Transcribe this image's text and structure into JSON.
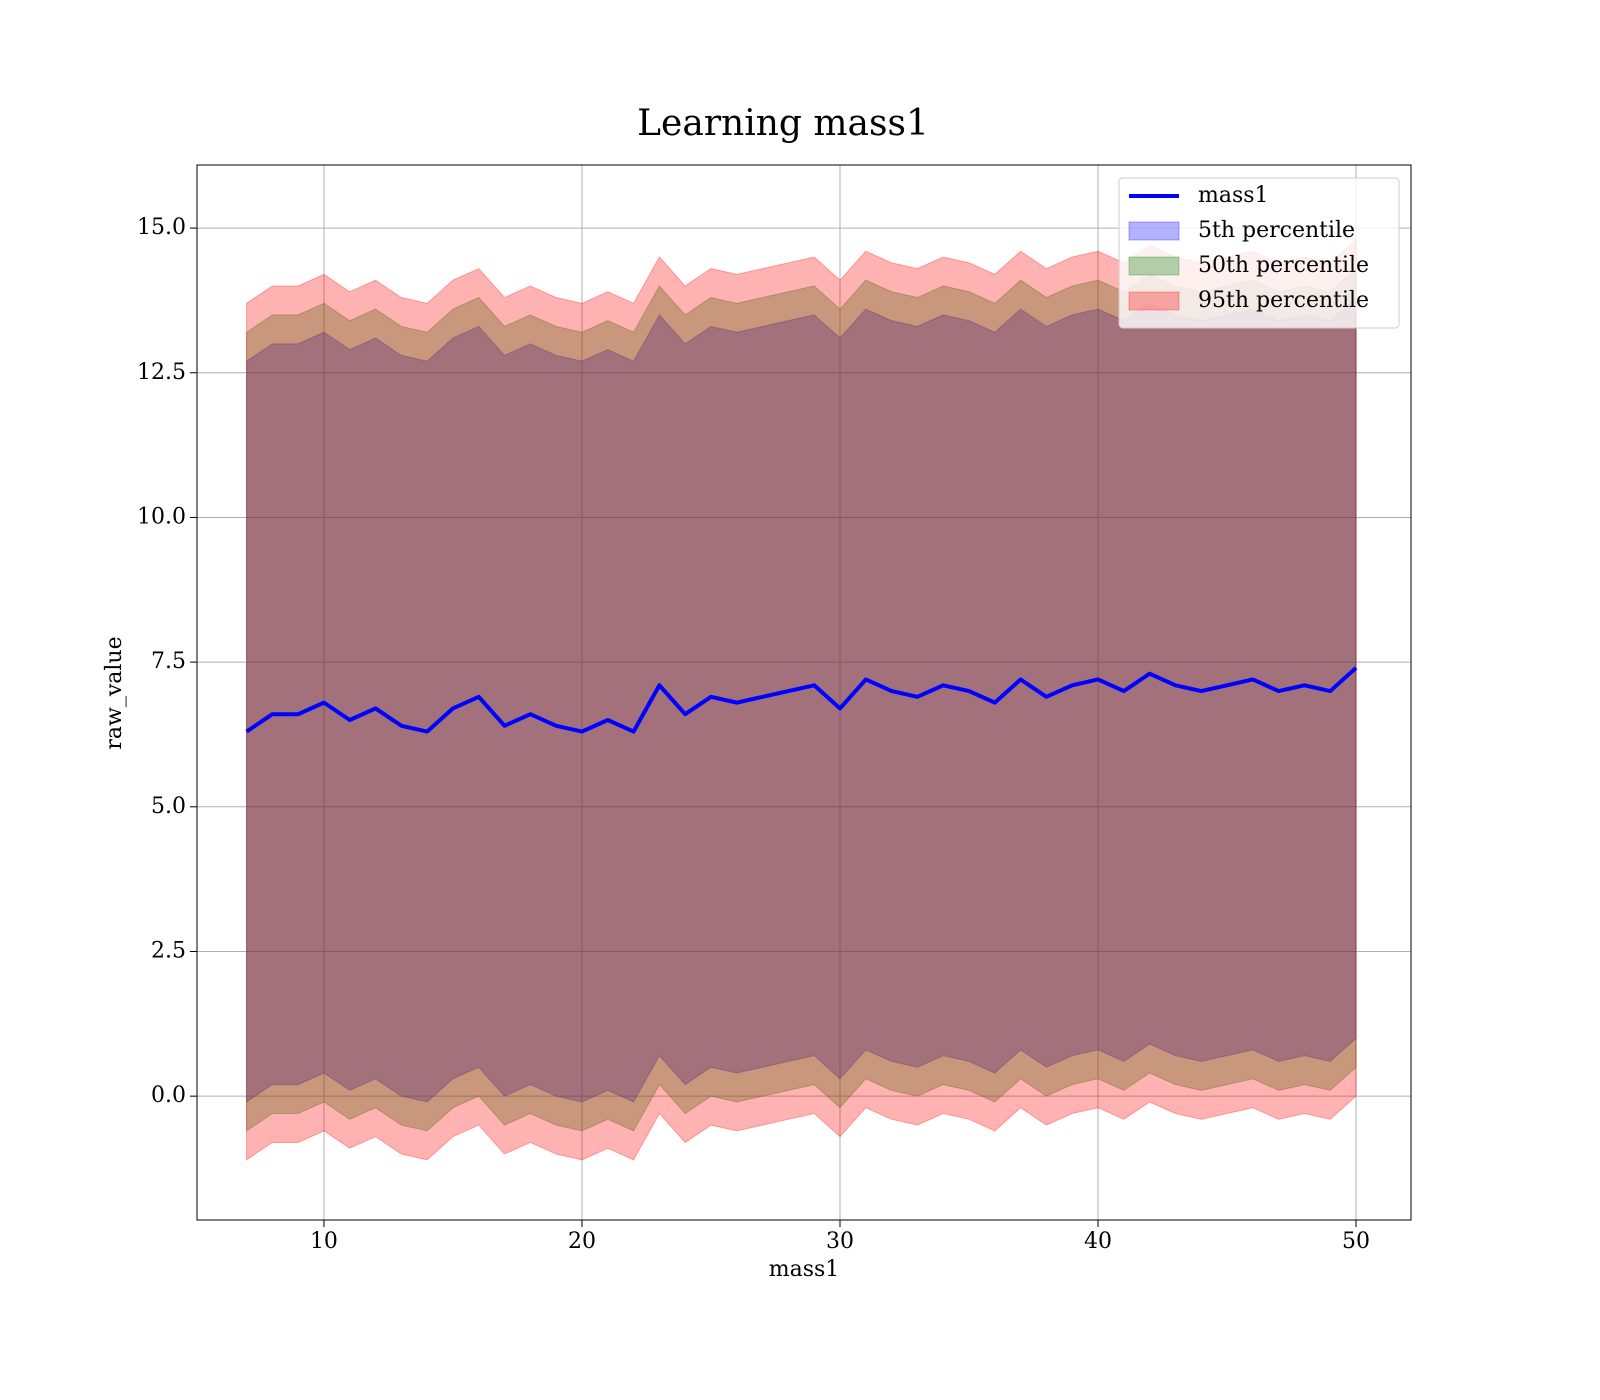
{
  "chart_data": {
    "type": "line",
    "title": "Learning mass1",
    "xlabel": "mass1",
    "ylabel": "raw_value",
    "x": [
      7,
      8,
      9,
      10,
      11,
      12,
      13,
      14,
      15,
      16,
      17,
      18,
      19,
      20,
      21,
      22,
      23,
      24,
      25,
      26,
      27,
      28,
      29,
      30,
      31,
      32,
      33,
      34,
      35,
      36,
      37,
      38,
      39,
      40,
      41,
      42,
      43,
      44,
      45,
      46,
      47,
      48,
      49,
      50
    ],
    "series": [
      {
        "name": "mass1",
        "color": "#0000ff",
        "values": [
          6.3,
          6.6,
          6.6,
          6.8,
          6.5,
          6.7,
          6.4,
          6.3,
          6.7,
          6.9,
          6.4,
          6.6,
          6.4,
          6.3,
          6.5,
          6.3,
          7.1,
          6.6,
          6.9,
          6.8,
          6.9,
          7.0,
          7.1,
          6.7,
          7.2,
          7.0,
          6.9,
          7.1,
          7.0,
          6.8,
          7.2,
          6.9,
          7.1,
          7.2,
          7.0,
          7.3,
          7.1,
          7.0,
          7.1,
          7.2,
          7.0,
          7.1,
          7.0,
          7.4
        ]
      }
    ],
    "bands": [
      {
        "name": "5th percentile",
        "color": "#0000ff",
        "lower": [
          -0.1,
          0.2,
          0.2,
          0.4,
          0.1,
          0.3,
          0.0,
          -0.1,
          0.3,
          0.5,
          0.0,
          0.2,
          0.0,
          -0.1,
          0.1,
          -0.1,
          0.7,
          0.2,
          0.5,
          0.4,
          0.5,
          0.6,
          0.7,
          0.3,
          0.8,
          0.6,
          0.5,
          0.7,
          0.6,
          0.4,
          0.8,
          0.5,
          0.7,
          0.8,
          0.6,
          0.9,
          0.7,
          0.6,
          0.7,
          0.8,
          0.6,
          0.7,
          0.6,
          1.0
        ],
        "upper": [
          12.7,
          13.0,
          13.0,
          13.2,
          12.9,
          13.1,
          12.8,
          12.7,
          13.1,
          13.3,
          12.8,
          13.0,
          12.8,
          12.7,
          12.9,
          12.7,
          13.5,
          13.0,
          13.3,
          13.2,
          13.3,
          13.4,
          13.5,
          13.1,
          13.6,
          13.4,
          13.3,
          13.5,
          13.4,
          13.2,
          13.6,
          13.3,
          13.5,
          13.6,
          13.4,
          13.7,
          13.5,
          13.4,
          13.5,
          13.6,
          13.4,
          13.5,
          13.4,
          13.8
        ]
      },
      {
        "name": "50th percentile",
        "color": "#008000",
        "lower": [
          -0.6,
          -0.3,
          -0.3,
          -0.1,
          -0.4,
          -0.2,
          -0.5,
          -0.6,
          -0.2,
          0.0,
          -0.5,
          -0.3,
          -0.5,
          -0.6,
          -0.4,
          -0.6,
          0.2,
          -0.3,
          0.0,
          -0.1,
          0.0,
          0.1,
          0.2,
          -0.2,
          0.3,
          0.1,
          0.0,
          0.2,
          0.1,
          -0.1,
          0.3,
          0.0,
          0.2,
          0.3,
          0.1,
          0.4,
          0.2,
          0.1,
          0.2,
          0.3,
          0.1,
          0.2,
          0.1,
          0.5
        ],
        "upper": [
          13.2,
          13.5,
          13.5,
          13.7,
          13.4,
          13.6,
          13.3,
          13.2,
          13.6,
          13.8,
          13.3,
          13.5,
          13.3,
          13.2,
          13.4,
          13.2,
          14.0,
          13.5,
          13.8,
          13.7,
          13.8,
          13.9,
          14.0,
          13.6,
          14.1,
          13.9,
          13.8,
          14.0,
          13.9,
          13.7,
          14.1,
          13.8,
          14.0,
          14.1,
          13.9,
          14.2,
          14.0,
          13.9,
          14.0,
          14.1,
          13.9,
          14.0,
          13.9,
          14.3
        ]
      },
      {
        "name": "95th percentile",
        "color": "#ff0000",
        "lower": [
          -1.1,
          -0.8,
          -0.8,
          -0.6,
          -0.9,
          -0.7,
          -1.0,
          -1.1,
          -0.7,
          -0.5,
          -1.0,
          -0.8,
          -1.0,
          -1.1,
          -0.9,
          -1.1,
          -0.3,
          -0.8,
          -0.5,
          -0.6,
          -0.5,
          -0.4,
          -0.3,
          -0.7,
          -0.2,
          -0.4,
          -0.5,
          -0.3,
          -0.4,
          -0.6,
          -0.2,
          -0.5,
          -0.3,
          -0.2,
          -0.4,
          -0.1,
          -0.3,
          -0.4,
          -0.3,
          -0.2,
          -0.4,
          -0.3,
          -0.4,
          0.0
        ],
        "upper": [
          13.7,
          14.0,
          14.0,
          14.2,
          13.9,
          14.1,
          13.8,
          13.7,
          14.1,
          14.3,
          13.8,
          14.0,
          13.8,
          13.7,
          13.9,
          13.7,
          14.5,
          14.0,
          14.3,
          14.2,
          14.3,
          14.4,
          14.5,
          14.1,
          14.6,
          14.4,
          14.3,
          14.5,
          14.4,
          14.2,
          14.6,
          14.3,
          14.5,
          14.6,
          14.4,
          14.7,
          14.5,
          14.4,
          14.5,
          14.6,
          14.4,
          14.5,
          14.4,
          14.8
        ]
      }
    ],
    "band_opacity": 0.3,
    "xlim": [
      5.08,
      52.13
    ],
    "ylim": [
      -2.14,
      16.09
    ],
    "xticks": [
      10,
      20,
      30,
      40,
      50
    ],
    "yticks": [
      {
        "value": 0,
        "label": "0.0"
      },
      {
        "value": 2.5,
        "label": "2.5"
      },
      {
        "value": 5,
        "label": "5.0"
      },
      {
        "value": 7.5,
        "label": "7.5"
      },
      {
        "value": 10,
        "label": "10.0"
      },
      {
        "value": 12.5,
        "label": "12.5"
      },
      {
        "value": 15,
        "label": "15.0"
      }
    ],
    "grid": true,
    "legend": "upper right"
  }
}
